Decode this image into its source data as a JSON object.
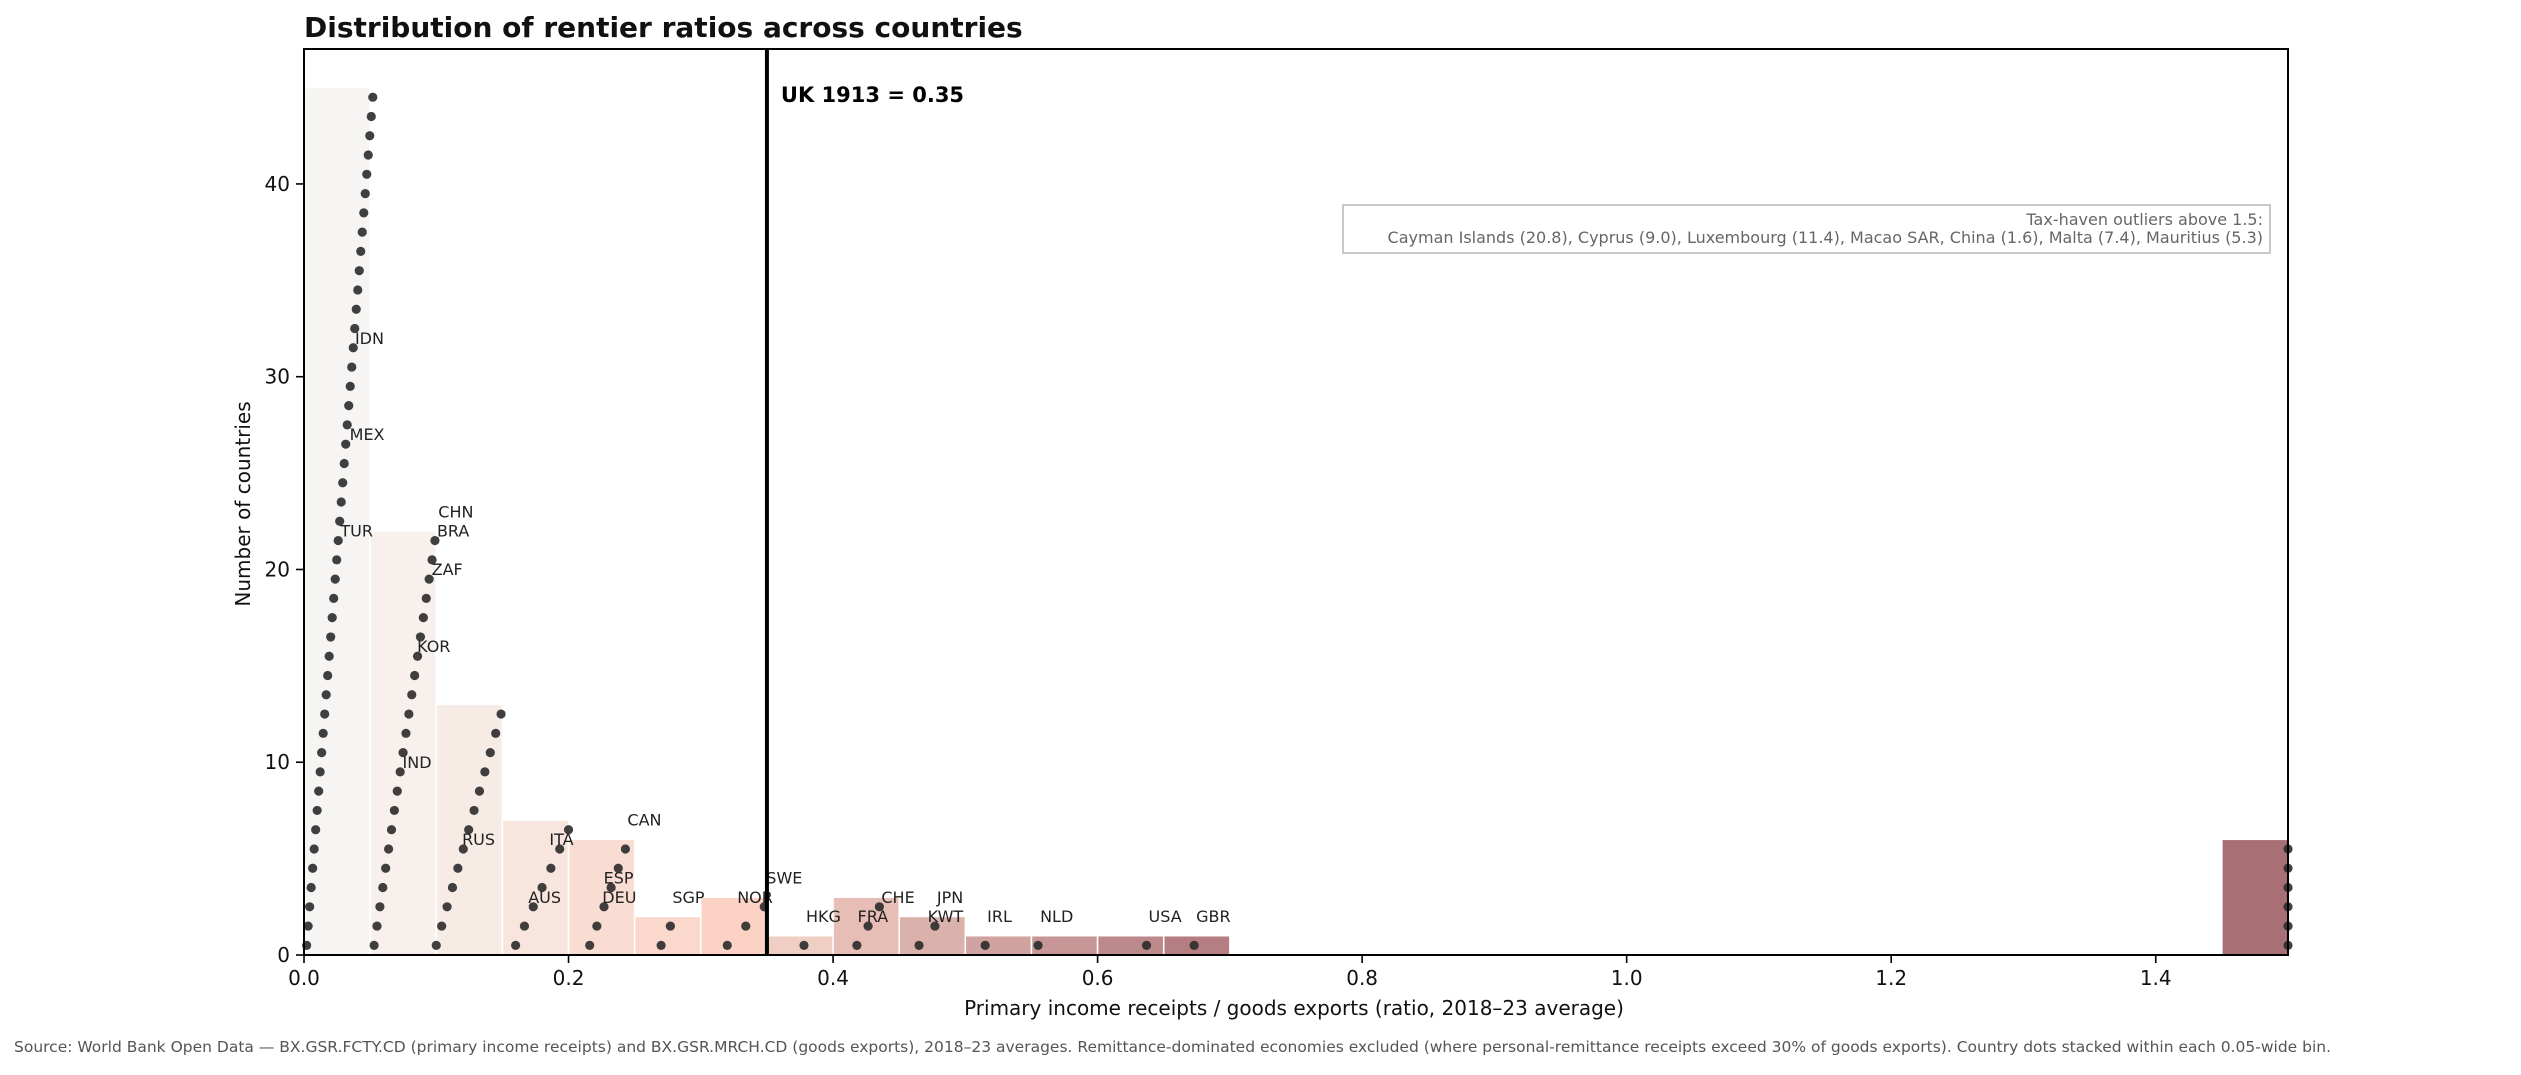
{
  "chart_data": {
    "type": "bar",
    "title": "Distribution of rentier ratios across countries",
    "xlabel": "Primary income receipts / goods exports (ratio, 2018–23 average)",
    "ylabel": "Number of countries",
    "xlim": [
      0,
      1.5
    ],
    "ylim": [
      0,
      47
    ],
    "x_ticks": [
      0.0,
      0.2,
      0.4,
      0.6,
      0.8,
      1.0,
      1.2,
      1.4
    ],
    "x_tick_labels": [
      "0.0",
      "0.2",
      "0.4",
      "0.6",
      "0.8",
      "1.0",
      "1.2",
      "1.4"
    ],
    "y_ticks": [
      0,
      10,
      20,
      30,
      40
    ],
    "y_tick_labels": [
      "0",
      "10",
      "20",
      "30",
      "40"
    ],
    "grid": false,
    "bin_width": 0.05,
    "bins": [
      {
        "x0": 0.0,
        "x1": 0.05,
        "count": 45,
        "color": "#f6f5f3"
      },
      {
        "x0": 0.05,
        "x1": 0.1,
        "count": 22,
        "color": "#f7f0ec"
      },
      {
        "x0": 0.1,
        "x1": 0.15,
        "count": 13,
        "color": "#f7ebe6"
      },
      {
        "x0": 0.15,
        "x1": 0.2,
        "count": 7,
        "color": "#f8e5de"
      },
      {
        "x0": 0.2,
        "x1": 0.25,
        "count": 6,
        "color": "#f9ddd2"
      },
      {
        "x0": 0.25,
        "x1": 0.3,
        "count": 2,
        "color": "#fad8cb"
      },
      {
        "x0": 0.3,
        "x1": 0.35,
        "count": 3,
        "color": "#fbd2c3"
      },
      {
        "x0": 0.35,
        "x1": 0.4,
        "count": 1,
        "color": "#efcfc4"
      },
      {
        "x0": 0.4,
        "x1": 0.45,
        "count": 3,
        "color": "#e6beb5"
      },
      {
        "x0": 0.45,
        "x1": 0.5,
        "count": 2,
        "color": "#dbb2ab"
      },
      {
        "x0": 0.5,
        "x1": 0.55,
        "count": 1,
        "color": "#d0a3a0"
      },
      {
        "x0": 0.55,
        "x1": 0.6,
        "count": 1,
        "color": "#c79796"
      },
      {
        "x0": 0.6,
        "x1": 0.65,
        "count": 1,
        "color": "#bd8a8c"
      },
      {
        "x0": 0.65,
        "x1": 0.7,
        "count": 1,
        "color": "#b47e83"
      },
      {
        "x0": 1.45,
        "x1": 1.5,
        "count": 6,
        "color": "#a86f75"
      }
    ],
    "country_dots": [
      {
        "bin": 0,
        "offset": 0,
        "x_start": 0.002,
        "x_end": 0.052
      },
      {
        "bin": 1,
        "offset": 0,
        "x_start": 0.053,
        "x_end": 0.099
      },
      {
        "bin": 2,
        "offset": 0,
        "x_start": 0.1,
        "x_end": 0.149
      },
      {
        "bin": 3,
        "offset": 0,
        "x_start": 0.16,
        "x_end": 0.2
      },
      {
        "bin": 4,
        "offset": 0,
        "x_start": 0.216,
        "x_end": 0.243
      },
      {
        "bin": 5,
        "offset": 0,
        "x_start": 0.27,
        "x_end": 0.277
      },
      {
        "bin": 6,
        "offset": 0,
        "x_start": 0.32,
        "x_end": 0.348
      },
      {
        "bin": 7,
        "offset": 0,
        "x_start": 0.378,
        "x_end": 0.378
      },
      {
        "bin": 8,
        "offset": 0,
        "x_start": 0.418,
        "x_end": 0.435
      },
      {
        "bin": 9,
        "offset": 0,
        "x_start": 0.465,
        "x_end": 0.477
      },
      {
        "bin": 10,
        "offset": 0,
        "x_start": 0.515,
        "x_end": 0.515
      },
      {
        "bin": 11,
        "offset": 0,
        "x_start": 0.555,
        "x_end": 0.555
      },
      {
        "bin": 12,
        "offset": 0,
        "x_start": 0.637,
        "x_end": 0.637
      },
      {
        "bin": 13,
        "offset": 0,
        "x_start": 0.673,
        "x_end": 0.673
      },
      {
        "bin": 14,
        "offset": 0,
        "x_start": 1.5,
        "x_end": 1.5
      }
    ],
    "country_labels": [
      {
        "code": "IDN",
        "x": 0.037,
        "y": 31.5
      },
      {
        "code": "MEX",
        "x": 0.033,
        "y": 26.5
      },
      {
        "code": "TUR",
        "x": 0.026,
        "y": 21.5
      },
      {
        "code": "CHN",
        "x": 0.1,
        "y": 22.5
      },
      {
        "code": "BRA",
        "x": 0.099,
        "y": 21.5
      },
      {
        "code": "ZAF",
        "x": 0.095,
        "y": 19.5
      },
      {
        "code": "KOR",
        "x": 0.084,
        "y": 15.5
      },
      {
        "code": "IND",
        "x": 0.073,
        "y": 9.5
      },
      {
        "code": "RUS",
        "x": 0.118,
        "y": 5.5
      },
      {
        "code": "CAN",
        "x": 0.243,
        "y": 6.5
      },
      {
        "code": "ITA",
        "x": 0.184,
        "y": 5.5
      },
      {
        "code": "ESP",
        "x": 0.225,
        "y": 3.5
      },
      {
        "code": "DEU",
        "x": 0.224,
        "y": 2.5
      },
      {
        "code": "AUS",
        "x": 0.168,
        "y": 2.5
      },
      {
        "code": "SGP",
        "x": 0.277,
        "y": 2.5
      },
      {
        "code": "NOR",
        "x": 0.326,
        "y": 2.5
      },
      {
        "code": "SWE",
        "x": 0.348,
        "y": 3.5
      },
      {
        "code": "HKG",
        "x": 0.378,
        "y": 1.5
      },
      {
        "code": "CHE",
        "x": 0.435,
        "y": 2.5
      },
      {
        "code": "FRA",
        "x": 0.417,
        "y": 1.5
      },
      {
        "code": "JPN",
        "x": 0.477,
        "y": 2.5
      },
      {
        "code": "KWT",
        "x": 0.47,
        "y": 1.5
      },
      {
        "code": "IRL",
        "x": 0.515,
        "y": 1.5
      },
      {
        "code": "NLD",
        "x": 0.555,
        "y": 1.5
      },
      {
        "code": "USA",
        "x": 0.637,
        "y": 1.5
      },
      {
        "code": "GBR",
        "x": 0.673,
        "y": 1.5
      }
    ],
    "reference_line": {
      "x": 0.35,
      "label": "UK 1913 = 0.35"
    },
    "annotation": {
      "line1": "Tax-haven outliers above 1.5:",
      "line2": "Cayman Islands (20.8), Cyprus (9.0), Luxembourg (11.4), Macao SAR, China (1.6), Malta (7.4), Mauritius (5.3)"
    },
    "source": "Source: World Bank Open Data — BX.GSR.FCTY.CD (primary income receipts) and BX.GSR.MRCH.CD (goods exports), 2018–23 averages. Remittance-dominated economies excluded (where personal-remittance receipts exceed 30% of goods exports). Country dots stacked within each 0.05-wide bin."
  }
}
